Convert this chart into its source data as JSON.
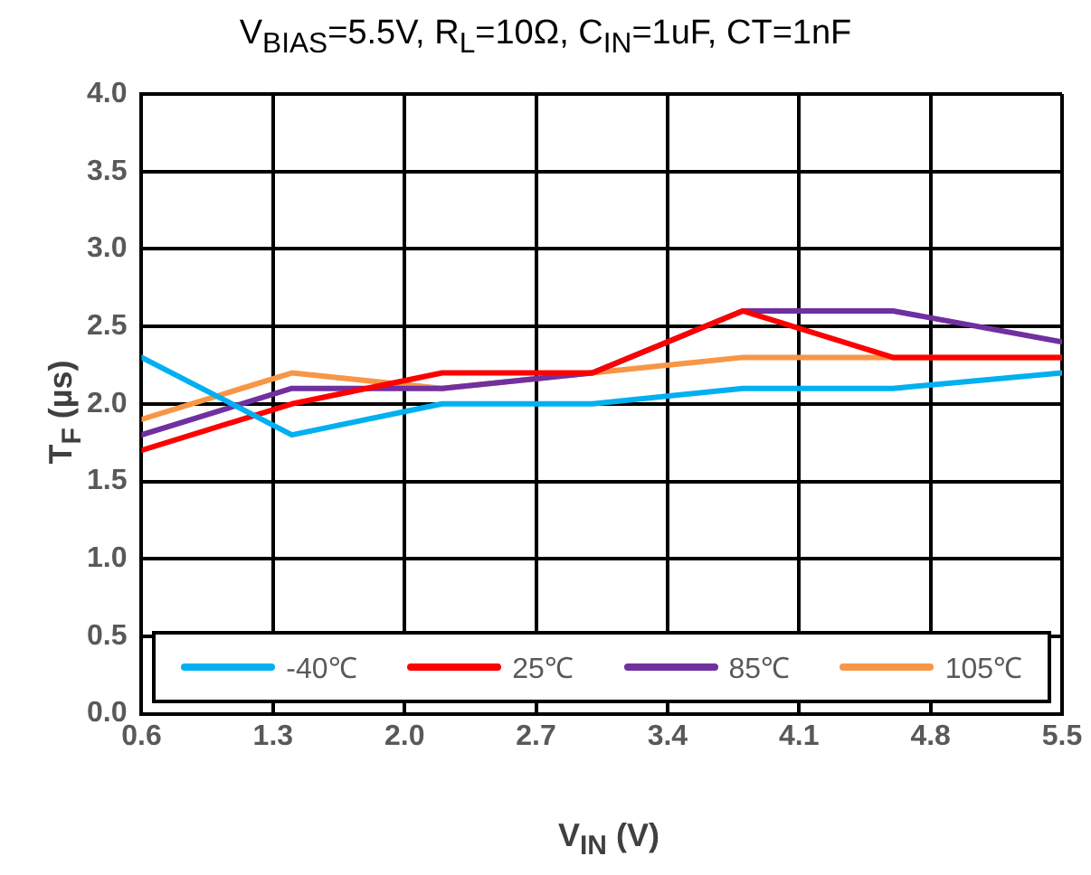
{
  "chart_data": {
    "type": "line",
    "title": "V$_{BIAS}$=5.5V, R$_{L}$=10Ω, C$_{IN}$=1uF, CT=1nF",
    "xlabel": "V$_{IN}$ (V)",
    "ylabel": "T$_{F}$ (µs)",
    "x": [
      0.6,
      1.4,
      2.2,
      3.0,
      3.8,
      4.6,
      5.5
    ],
    "series": [
      {
        "name": "-40℃",
        "color": "#00b0f0",
        "values": [
          2.3,
          1.8,
          2.0,
          2.0,
          2.1,
          2.1,
          2.2
        ]
      },
      {
        "name": "25℃",
        "color": "#ff0000",
        "values": [
          1.7,
          2.0,
          2.2,
          2.2,
          2.6,
          2.3,
          2.3
        ]
      },
      {
        "name": "85℃",
        "color": "#7030a0",
        "values": [
          1.8,
          2.1,
          2.1,
          2.2,
          2.6,
          2.6,
          2.4
        ]
      },
      {
        "name": "105℃",
        "color": "#f79646",
        "values": [
          1.9,
          2.2,
          2.1,
          2.2,
          2.3,
          2.3,
          2.3
        ]
      }
    ],
    "xlim": [
      0.6,
      5.5
    ],
    "xticks": [
      0.6,
      1.3,
      {
        "value": 2,
        "label": "2.0"
      },
      2.7,
      3.4,
      4.1,
      4.8,
      5.5
    ],
    "ylim": [
      0,
      4
    ],
    "yticks": [
      {
        "value": 0,
        "label": "0.0"
      },
      {
        "value": 0.5,
        "label": "0.5"
      },
      {
        "value": 1,
        "label": "1.0"
      },
      {
        "value": 1.5,
        "label": "1.5"
      },
      {
        "value": 2,
        "label": "2.0"
      },
      {
        "value": 2.5,
        "label": "2.5"
      },
      {
        "value": 3,
        "label": "3.0"
      },
      {
        "value": 3.5,
        "label": "3.5"
      },
      {
        "value": 4,
        "label": "4.0"
      }
    ],
    "grid": true,
    "legend": "bottom",
    "marker": "none",
    "line_style": "solid"
  }
}
